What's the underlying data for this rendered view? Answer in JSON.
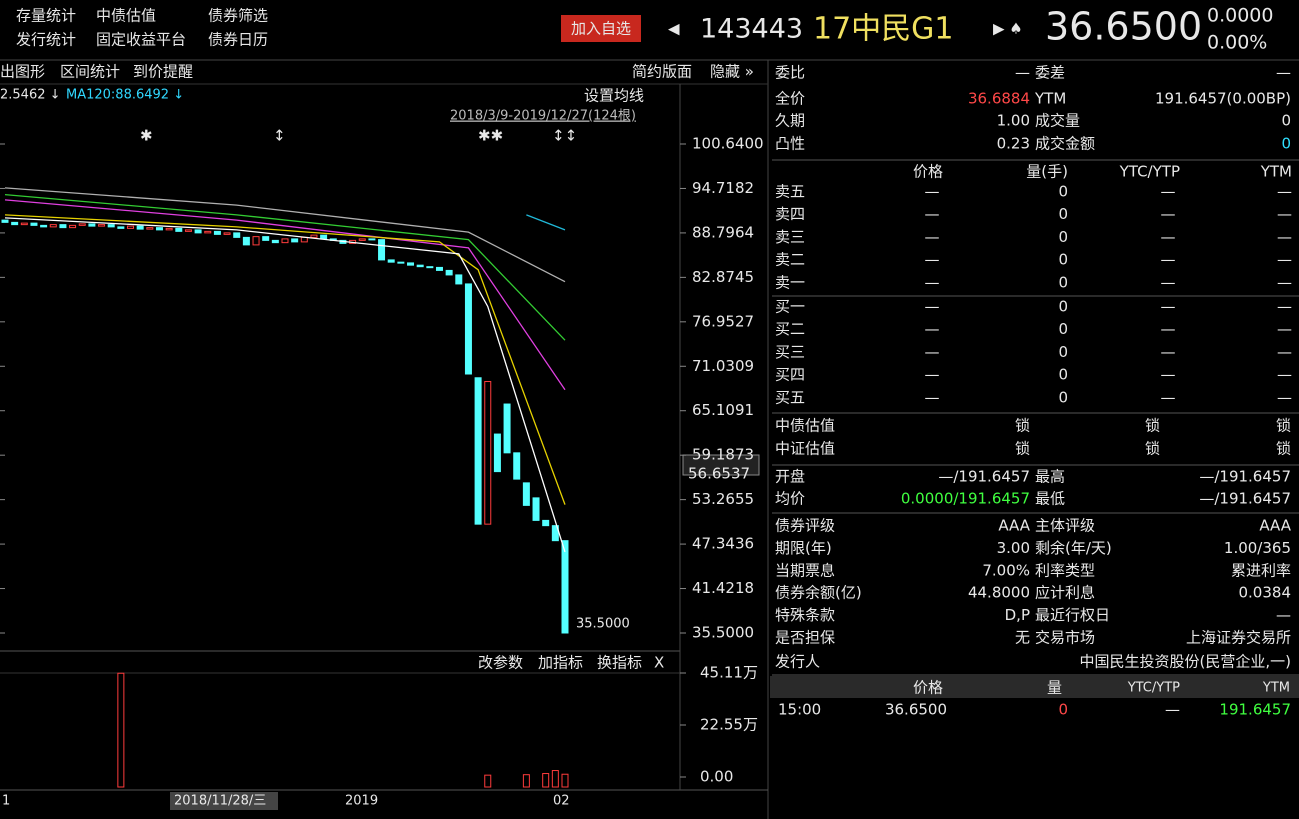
{
  "menu": [
    "存量统计",
    "中债估值",
    "债券筛选",
    "发行统计",
    "固定收益平台",
    "债券日历"
  ],
  "quote": {
    "button": "加入自选",
    "code": "143443",
    "name": "17中民G1",
    "price": "36.6500",
    "change": "0.0000",
    "change_pct": "0.00%"
  },
  "toolbar": {
    "left": [
      "出图形",
      "区间统计",
      "到价提醒"
    ],
    "right": [
      "简约版面",
      "隐藏 »"
    ]
  },
  "kline": {
    "ma_labels": [
      "2.5462 ↓",
      "MA120:88.6492 ↓"
    ],
    "ma_setting": "设置均线",
    "range": "2018/3/9-2019/12/27(124根)",
    "ylim": [
      35.5,
      100.64
    ],
    "yticks": [
      {
        "value": 100.64,
        "label": "100.6400"
      },
      {
        "value": 94.7182,
        "label": "94.7182"
      },
      {
        "value": 88.7964,
        "label": "88.7964"
      },
      {
        "value": 82.8745,
        "label": "82.8745"
      },
      {
        "value": 76.9527,
        "label": "76.9527"
      },
      {
        "value": 71.0309,
        "label": "71.0309"
      },
      {
        "value": 65.1091,
        "label": "65.1091"
      },
      {
        "value": 59.1873,
        "label": "59.1873"
      },
      {
        "value": 53.2655,
        "label": "53.2655"
      },
      {
        "value": 47.3436,
        "label": "47.3436"
      },
      {
        "value": 41.4218,
        "label": "41.4218"
      },
      {
        "value": 35.5,
        "label": "35.5000"
      }
    ],
    "current_label": {
      "value": 56.6537,
      "label": "56.6537"
    },
    "low_label": {
      "value": 35.5,
      "label": "35.5000"
    },
    "up_color": "#ff3c3c",
    "down_color": "#54ffff",
    "open": [
      90.5,
      90.2,
      89.9,
      90.1,
      89.8,
      89.6,
      89.9,
      89.5,
      89.8,
      90.0,
      89.7,
      89.9,
      89.6,
      89.4,
      89.7,
      89.3,
      89.5,
      89.2,
      89.4,
      89.0,
      89.2,
      88.8,
      89.0,
      88.6,
      88.8,
      88.2,
      87.2,
      88.3,
      87.8,
      87.5,
      88.0,
      87.6,
      88.2,
      88.5,
      88.0,
      87.8,
      87.4,
      87.8,
      88.0,
      87.9,
      85.2,
      84.9,
      84.8,
      84.5,
      84.3,
      84.2,
      83.8,
      83.2,
      82.0,
      69.5,
      50.0,
      62.0,
      66.0,
      59.5,
      55.5,
      53.5,
      50.5,
      49.8,
      47.8
    ],
    "close": [
      90.2,
      89.9,
      90.1,
      89.8,
      89.6,
      89.9,
      89.5,
      89.8,
      90.0,
      89.7,
      89.9,
      89.6,
      89.4,
      89.7,
      89.3,
      89.5,
      89.2,
      89.4,
      89.0,
      89.2,
      88.8,
      89.0,
      88.6,
      88.8,
      88.2,
      87.2,
      88.3,
      87.8,
      87.5,
      88.0,
      87.6,
      88.2,
      88.5,
      88.0,
      87.8,
      87.4,
      87.8,
      88.0,
      87.9,
      85.2,
      84.9,
      84.8,
      84.5,
      84.3,
      84.2,
      83.8,
      83.2,
      82.0,
      70.0,
      50.0,
      69.0,
      57.0,
      59.5,
      56.0,
      52.5,
      50.5,
      49.8,
      47.8,
      35.5
    ],
    "ma_lines": [
      {
        "color": "#b0b0b0",
        "x": [
          0,
          24,
          48,
          58
        ],
        "values": [
          94.8,
          92.5,
          88.9,
          82.3
        ]
      },
      {
        "color": "#33cc33",
        "x": [
          0,
          24,
          48,
          58
        ],
        "values": [
          93.9,
          91.2,
          87.9,
          74.5
        ]
      },
      {
        "color": "#e040e0",
        "x": [
          0,
          24,
          48,
          58
        ],
        "values": [
          93.2,
          90.5,
          86.8,
          67.9
        ]
      },
      {
        "color": "#e6d200",
        "x": [
          0,
          24,
          45,
          49,
          58
        ],
        "values": [
          91.2,
          89.6,
          87.6,
          83.9,
          52.6
        ]
      },
      {
        "color": "#ffffff",
        "x": [
          0,
          24,
          47,
          50,
          58
        ],
        "values": [
          90.8,
          89.2,
          86.0,
          79.0,
          46.3
        ]
      },
      {
        "color": "#20b8d8",
        "x": [
          54,
          58
        ],
        "values": [
          91.2,
          89.2
        ]
      }
    ]
  },
  "volume": {
    "tools": [
      "改参数",
      "加指标",
      "换指标",
      "X"
    ],
    "ylim": [
      0,
      45.11
    ],
    "yticks": [
      {
        "value": 45.11,
        "label": "45.11万"
      },
      {
        "value": 22.55,
        "label": "22.55万"
      },
      {
        "value": 0,
        "label": "0.00"
      }
    ],
    "x": [
      12,
      50,
      54,
      56,
      57,
      58
    ],
    "values": [
      45.0,
      0.8,
      1.0,
      1.5,
      2.8,
      1.2
    ]
  },
  "x_axis": [
    "1",
    "2018/11/28/三",
    "2019",
    "02"
  ],
  "panel": {
    "info_top": [
      [
        "委比",
        "—",
        "委差",
        "—"
      ],
      [
        "全价",
        "36.6884",
        "YTM",
        "191.6457(0.00BP)"
      ],
      [
        "久期",
        "1.00",
        "成交量",
        "0"
      ],
      [
        "凸性",
        "0.23",
        "成交金额",
        "0"
      ]
    ],
    "book_header": [
      "价格",
      "量(手)",
      "YTC/YTP",
      "YTM"
    ],
    "asks": [
      [
        "卖五",
        "—",
        "0",
        "—",
        "—"
      ],
      [
        "卖四",
        "—",
        "0",
        "—",
        "—"
      ],
      [
        "卖三",
        "—",
        "0",
        "—",
        "—"
      ],
      [
        "卖二",
        "—",
        "0",
        "—",
        "—"
      ],
      [
        "卖一",
        "—",
        "0",
        "—",
        "—"
      ]
    ],
    "bids": [
      [
        "买一",
        "—",
        "0",
        "—",
        "—"
      ],
      [
        "买二",
        "—",
        "0",
        "—",
        "—"
      ],
      [
        "买三",
        "—",
        "0",
        "—",
        "—"
      ],
      [
        "买四",
        "—",
        "0",
        "—",
        "—"
      ],
      [
        "买五",
        "—",
        "0",
        "—",
        "—"
      ]
    ],
    "valuation": [
      [
        "中债估值",
        "锁",
        "锁",
        "锁"
      ],
      [
        "中证估值",
        "锁",
        "锁",
        "锁"
      ]
    ],
    "prices": [
      [
        "开盘",
        "—/191.6457",
        "最高",
        "—/191.6457"
      ],
      [
        "均价",
        "0.0000/191.6457",
        "最低",
        "—/191.6457"
      ]
    ],
    "bond_info": [
      [
        "债券评级",
        "AAA",
        "主体评级",
        "AAA"
      ],
      [
        "期限(年)",
        "3.00",
        "剩余(年/天)",
        "1.00/365"
      ],
      [
        "当期票息",
        "7.00%",
        "利率类型",
        "累进利率"
      ],
      [
        "债券余额(亿)",
        "44.8000",
        "应计利息",
        "0.0384"
      ],
      [
        "特殊条款",
        "D,P",
        "最近行权日",
        "—"
      ],
      [
        "是否担保",
        "无",
        "交易市场",
        "上海证券交易所"
      ]
    ],
    "issuer": [
      "发行人",
      "中国民生投资股份(民营企业,一)"
    ],
    "trades_header": [
      "价格",
      "量",
      "YTC/YTP",
      "YTM"
    ],
    "trades": [
      [
        "15:00",
        "36.6500",
        "0",
        "—",
        "191.6457"
      ]
    ]
  }
}
